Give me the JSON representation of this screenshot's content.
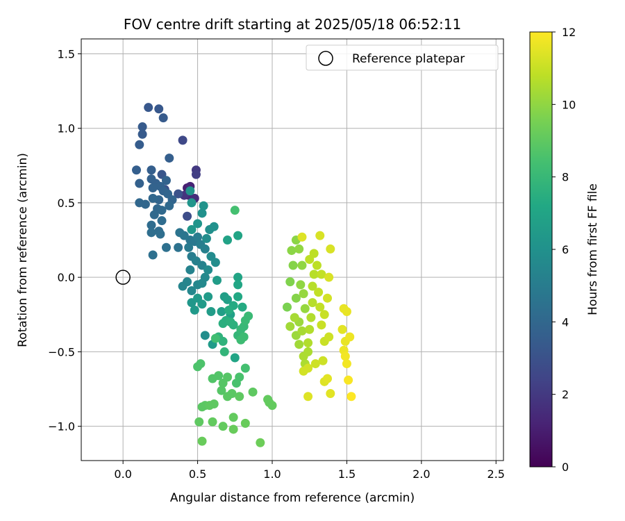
{
  "chart_data": {
    "type": "scatter",
    "title": "FOV centre drift starting at 2025/05/18 06:52:11",
    "xlabel": "Angular distance from reference (arcmin)",
    "ylabel": "Rotation from reference (arcmin)",
    "xlim": [
      -0.28,
      2.55
    ],
    "ylim": [
      -1.23,
      1.6
    ],
    "xticks": [
      0.0,
      0.5,
      1.0,
      1.5,
      2.0,
      2.5
    ],
    "xtick_labels": [
      "0.0",
      "0.5",
      "1.0",
      "1.5",
      "2.0",
      "2.5"
    ],
    "yticks": [
      -1.0,
      -0.5,
      0.0,
      0.5,
      1.0,
      1.5
    ],
    "ytick_labels": [
      "−1.0",
      "−0.5",
      "0.0",
      "0.5",
      "1.0",
      "1.5"
    ],
    "grid": true,
    "legend": {
      "placement": "top-right",
      "entries": [
        "Reference platepar"
      ]
    },
    "reference_point": {
      "x": 0.0,
      "y": 0.0,
      "label": "Reference platepar"
    },
    "colorbar": {
      "label": "Hours from first FF file",
      "colormap": "viridis",
      "range": [
        0,
        12
      ],
      "ticks": [
        "0",
        "2",
        "4",
        "6",
        "8",
        "10",
        "12"
      ]
    },
    "series": [
      {
        "x": 0.43,
        "y": 0.6,
        "c": 1.0
      },
      {
        "x": 0.45,
        "y": 0.61,
        "c": 1.2
      },
      {
        "x": 0.44,
        "y": 0.55,
        "c": 1.3
      },
      {
        "x": 0.48,
        "y": 0.53,
        "c": 1.5
      },
      {
        "x": 0.41,
        "y": 0.55,
        "c": 1.8
      },
      {
        "x": 0.49,
        "y": 0.72,
        "c": 2.0
      },
      {
        "x": 0.49,
        "y": 0.69,
        "c": 2.2
      },
      {
        "x": 0.4,
        "y": 0.92,
        "c": 2.6
      },
      {
        "x": 0.43,
        "y": 0.41,
        "c": 2.8
      },
      {
        "x": 0.37,
        "y": 0.56,
        "c": 3.0
      },
      {
        "x": 0.28,
        "y": 0.59,
        "c": 3.0
      },
      {
        "x": 0.26,
        "y": 0.69,
        "c": 3.2
      },
      {
        "x": 0.17,
        "y": 1.14,
        "c": 3.3
      },
      {
        "x": 0.24,
        "y": 1.13,
        "c": 3.3
      },
      {
        "x": 0.27,
        "y": 1.07,
        "c": 3.4
      },
      {
        "x": 0.13,
        "y": 1.01,
        "c": 3.4
      },
      {
        "x": 0.13,
        "y": 0.96,
        "c": 3.4
      },
      {
        "x": 0.11,
        "y": 0.89,
        "c": 3.5
      },
      {
        "x": 0.31,
        "y": 0.8,
        "c": 3.6
      },
      {
        "x": 0.09,
        "y": 0.72,
        "c": 3.6
      },
      {
        "x": 0.19,
        "y": 0.72,
        "c": 3.6
      },
      {
        "x": 0.11,
        "y": 0.63,
        "c": 3.7
      },
      {
        "x": 0.19,
        "y": 0.66,
        "c": 3.7
      },
      {
        "x": 0.22,
        "y": 0.63,
        "c": 3.7
      },
      {
        "x": 0.25,
        "y": 0.61,
        "c": 3.8
      },
      {
        "x": 0.27,
        "y": 0.58,
        "c": 3.8
      },
      {
        "x": 0.2,
        "y": 0.6,
        "c": 3.8
      },
      {
        "x": 0.29,
        "y": 0.65,
        "c": 3.8
      },
      {
        "x": 0.3,
        "y": 0.56,
        "c": 3.9
      },
      {
        "x": 0.33,
        "y": 0.52,
        "c": 3.9
      },
      {
        "x": 0.24,
        "y": 0.52,
        "c": 3.9
      },
      {
        "x": 0.2,
        "y": 0.53,
        "c": 4.0
      },
      {
        "x": 0.11,
        "y": 0.5,
        "c": 4.0
      },
      {
        "x": 0.15,
        "y": 0.49,
        "c": 4.0
      },
      {
        "x": 0.23,
        "y": 0.46,
        "c": 4.0
      },
      {
        "x": 0.26,
        "y": 0.45,
        "c": 4.1
      },
      {
        "x": 0.31,
        "y": 0.48,
        "c": 4.1
      },
      {
        "x": 0.21,
        "y": 0.42,
        "c": 4.1
      },
      {
        "x": 0.26,
        "y": 0.38,
        "c": 4.2
      },
      {
        "x": 0.19,
        "y": 0.35,
        "c": 4.2
      },
      {
        "x": 0.24,
        "y": 0.31,
        "c": 4.2
      },
      {
        "x": 0.19,
        "y": 0.3,
        "c": 4.3
      },
      {
        "x": 0.25,
        "y": 0.29,
        "c": 4.3
      },
      {
        "x": 0.29,
        "y": 0.2,
        "c": 4.4
      },
      {
        "x": 0.2,
        "y": 0.15,
        "c": 4.4
      },
      {
        "x": 0.37,
        "y": 0.2,
        "c": 4.5
      },
      {
        "x": 0.38,
        "y": 0.3,
        "c": 4.6
      },
      {
        "x": 0.41,
        "y": 0.28,
        "c": 4.7
      },
      {
        "x": 0.45,
        "y": 0.25,
        "c": 4.7
      },
      {
        "x": 0.48,
        "y": 0.24,
        "c": 4.8
      },
      {
        "x": 0.44,
        "y": 0.2,
        "c": 4.9
      },
      {
        "x": 0.46,
        "y": 0.14,
        "c": 5.0
      },
      {
        "x": 0.5,
        "y": 0.27,
        "c": 5.0
      },
      {
        "x": 0.52,
        "y": 0.22,
        "c": 5.1
      },
      {
        "x": 0.55,
        "y": 0.19,
        "c": 5.2
      },
      {
        "x": 0.49,
        "y": 0.11,
        "c": 5.2
      },
      {
        "x": 0.53,
        "y": 0.08,
        "c": 5.3
      },
      {
        "x": 0.45,
        "y": 0.05,
        "c": 5.3
      },
      {
        "x": 0.43,
        "y": -0.03,
        "c": 5.4
      },
      {
        "x": 0.4,
        "y": -0.06,
        "c": 5.4
      },
      {
        "x": 0.46,
        "y": -0.09,
        "c": 5.5
      },
      {
        "x": 0.5,
        "y": -0.05,
        "c": 5.5
      },
      {
        "x": 0.53,
        "y": -0.04,
        "c": 5.6
      },
      {
        "x": 0.55,
        "y": 0.0,
        "c": 5.6
      },
      {
        "x": 0.57,
        "y": 0.05,
        "c": 5.7
      },
      {
        "x": 0.59,
        "y": 0.14,
        "c": 5.7
      },
      {
        "x": 0.62,
        "y": 0.1,
        "c": 5.8
      },
      {
        "x": 0.56,
        "y": 0.26,
        "c": 5.8
      },
      {
        "x": 0.58,
        "y": 0.32,
        "c": 5.9
      },
      {
        "x": 0.61,
        "y": 0.34,
        "c": 6.0
      },
      {
        "x": 0.53,
        "y": 0.43,
        "c": 6.0
      },
      {
        "x": 0.54,
        "y": 0.48,
        "c": 6.1
      },
      {
        "x": 0.45,
        "y": 0.58,
        "c": 6.1
      },
      {
        "x": 0.46,
        "y": 0.5,
        "c": 6.2
      },
      {
        "x": 0.5,
        "y": 0.36,
        "c": 6.2
      },
      {
        "x": 0.46,
        "y": 0.32,
        "c": 6.3
      },
      {
        "x": 0.46,
        "y": -0.17,
        "c": 6.3
      },
      {
        "x": 0.48,
        "y": -0.22,
        "c": 6.4
      },
      {
        "x": 0.5,
        "y": -0.14,
        "c": 6.4
      },
      {
        "x": 0.53,
        "y": -0.18,
        "c": 6.5
      },
      {
        "x": 0.57,
        "y": -0.13,
        "c": 6.5
      },
      {
        "x": 0.59,
        "y": -0.23,
        "c": 6.6
      },
      {
        "x": 0.63,
        "y": -0.02,
        "c": 6.6
      },
      {
        "x": 0.66,
        "y": -0.23,
        "c": 6.7
      },
      {
        "x": 0.68,
        "y": -0.13,
        "c": 6.7
      },
      {
        "x": 0.7,
        "y": -0.15,
        "c": 6.8
      },
      {
        "x": 0.72,
        "y": -0.25,
        "c": 6.8
      },
      {
        "x": 0.7,
        "y": 0.25,
        "c": 6.9
      },
      {
        "x": 0.77,
        "y": 0.28,
        "c": 7.0
      },
      {
        "x": 0.77,
        "y": 0.0,
        "c": 7.0
      },
      {
        "x": 0.77,
        "y": -0.05,
        "c": 7.1
      },
      {
        "x": 0.77,
        "y": -0.13,
        "c": 7.2
      },
      {
        "x": 0.8,
        "y": -0.2,
        "c": 7.3
      },
      {
        "x": 0.74,
        "y": -0.19,
        "c": 7.3
      },
      {
        "x": 0.71,
        "y": -0.22,
        "c": 7.4
      },
      {
        "x": 0.67,
        "y": -0.31,
        "c": 7.5
      },
      {
        "x": 0.69,
        "y": -0.29,
        "c": 7.5
      },
      {
        "x": 0.72,
        "y": -0.3,
        "c": 7.6
      },
      {
        "x": 0.74,
        "y": -0.32,
        "c": 7.6
      },
      {
        "x": 0.64,
        "y": -0.4,
        "c": 7.7
      },
      {
        "x": 0.67,
        "y": -0.43,
        "c": 7.7
      },
      {
        "x": 0.68,
        "y": -0.5,
        "c": 7.8
      },
      {
        "x": 0.55,
        "y": -0.39,
        "c": 5.8
      },
      {
        "x": 0.6,
        "y": -0.45,
        "c": 6.5
      },
      {
        "x": 0.75,
        "y": -0.54,
        "c": 7.0
      },
      {
        "x": 0.77,
        "y": -0.39,
        "c": 7.9
      },
      {
        "x": 0.79,
        "y": -0.35,
        "c": 8.0
      },
      {
        "x": 0.81,
        "y": -0.33,
        "c": 8.0
      },
      {
        "x": 0.82,
        "y": -0.29,
        "c": 8.1
      },
      {
        "x": 0.84,
        "y": -0.26,
        "c": 8.1
      },
      {
        "x": 0.79,
        "y": -0.42,
        "c": 8.2
      },
      {
        "x": 0.81,
        "y": -0.4,
        "c": 8.2
      },
      {
        "x": 0.62,
        "y": -0.41,
        "c": 8.3
      },
      {
        "x": 0.75,
        "y": 0.45,
        "c": 8.4
      },
      {
        "x": 0.82,
        "y": -0.61,
        "c": 8.4
      },
      {
        "x": 0.78,
        "y": -0.67,
        "c": 8.5
      },
      {
        "x": 0.76,
        "y": -0.71,
        "c": 8.5
      },
      {
        "x": 0.52,
        "y": -0.58,
        "c": 8.6
      },
      {
        "x": 0.5,
        "y": -0.6,
        "c": 8.6
      },
      {
        "x": 0.6,
        "y": -0.68,
        "c": 8.7
      },
      {
        "x": 0.64,
        "y": -0.66,
        "c": 8.7
      },
      {
        "x": 0.67,
        "y": -0.71,
        "c": 8.8
      },
      {
        "x": 0.7,
        "y": -0.67,
        "c": 8.8
      },
      {
        "x": 0.66,
        "y": -0.76,
        "c": 8.8
      },
      {
        "x": 0.7,
        "y": -0.8,
        "c": 8.9
      },
      {
        "x": 0.73,
        "y": -0.78,
        "c": 8.9
      },
      {
        "x": 0.78,
        "y": -0.8,
        "c": 9.0
      },
      {
        "x": 0.87,
        "y": -0.77,
        "c": 9.0
      },
      {
        "x": 0.97,
        "y": -0.82,
        "c": 9.1
      },
      {
        "x": 0.98,
        "y": -0.84,
        "c": 9.1
      },
      {
        "x": 1.0,
        "y": -0.86,
        "c": 9.1
      },
      {
        "x": 0.53,
        "y": -0.87,
        "c": 8.9
      },
      {
        "x": 0.55,
        "y": -0.86,
        "c": 8.9
      },
      {
        "x": 0.58,
        "y": -0.86,
        "c": 9.0
      },
      {
        "x": 0.61,
        "y": -0.85,
        "c": 9.0
      },
      {
        "x": 0.51,
        "y": -0.97,
        "c": 9.0
      },
      {
        "x": 0.6,
        "y": -0.97,
        "c": 9.1
      },
      {
        "x": 0.67,
        "y": -1.0,
        "c": 9.1
      },
      {
        "x": 0.74,
        "y": -0.94,
        "c": 9.1
      },
      {
        "x": 0.74,
        "y": -1.02,
        "c": 9.2
      },
      {
        "x": 0.82,
        "y": -0.98,
        "c": 9.2
      },
      {
        "x": 0.53,
        "y": -1.1,
        "c": 9.2
      },
      {
        "x": 0.92,
        "y": -1.11,
        "c": 9.3
      },
      {
        "x": 1.1,
        "y": -0.2,
        "c": 9.6
      },
      {
        "x": 1.12,
        "y": -0.03,
        "c": 9.7
      },
      {
        "x": 1.14,
        "y": 0.08,
        "c": 9.8
      },
      {
        "x": 1.16,
        "y": -0.14,
        "c": 9.8
      },
      {
        "x": 1.13,
        "y": 0.18,
        "c": 9.9
      },
      {
        "x": 1.16,
        "y": 0.25,
        "c": 9.9
      },
      {
        "x": 1.18,
        "y": 0.19,
        "c": 10.0
      },
      {
        "x": 1.2,
        "y": 0.08,
        "c": 10.0
      },
      {
        "x": 1.19,
        "y": -0.05,
        "c": 10.0
      },
      {
        "x": 1.21,
        "y": -0.11,
        "c": 10.1
      },
      {
        "x": 1.22,
        "y": -0.21,
        "c": 10.1
      },
      {
        "x": 1.18,
        "y": -0.3,
        "c": 10.2
      },
      {
        "x": 1.16,
        "y": -0.39,
        "c": 10.2
      },
      {
        "x": 1.18,
        "y": -0.45,
        "c": 10.3
      },
      {
        "x": 1.12,
        "y": -0.33,
        "c": 10.3
      },
      {
        "x": 1.15,
        "y": -0.27,
        "c": 10.4
      },
      {
        "x": 1.2,
        "y": -0.36,
        "c": 10.4
      },
      {
        "x": 1.21,
        "y": -0.53,
        "c": 10.5
      },
      {
        "x": 1.22,
        "y": -0.58,
        "c": 10.5
      },
      {
        "x": 1.24,
        "y": -0.5,
        "c": 10.5
      },
      {
        "x": 1.24,
        "y": -0.44,
        "c": 10.6
      },
      {
        "x": 1.25,
        "y": -0.35,
        "c": 10.6
      },
      {
        "x": 1.26,
        "y": -0.27,
        "c": 10.6
      },
      {
        "x": 1.27,
        "y": -0.17,
        "c": 10.7
      },
      {
        "x": 1.27,
        "y": -0.06,
        "c": 10.7
      },
      {
        "x": 1.28,
        "y": 0.02,
        "c": 10.7
      },
      {
        "x": 1.25,
        "y": 0.12,
        "c": 10.8
      },
      {
        "x": 1.28,
        "y": 0.16,
        "c": 10.8
      },
      {
        "x": 1.3,
        "y": 0.08,
        "c": 10.8
      },
      {
        "x": 1.33,
        "y": 0.02,
        "c": 10.9
      },
      {
        "x": 1.31,
        "y": -0.1,
        "c": 10.9
      },
      {
        "x": 1.32,
        "y": -0.2,
        "c": 10.9
      },
      {
        "x": 1.35,
        "y": -0.25,
        "c": 11.0
      },
      {
        "x": 1.33,
        "y": -0.32,
        "c": 11.0
      },
      {
        "x": 1.35,
        "y": -0.43,
        "c": 11.0
      },
      {
        "x": 1.38,
        "y": -0.4,
        "c": 11.1
      },
      {
        "x": 1.34,
        "y": -0.56,
        "c": 11.1
      },
      {
        "x": 1.29,
        "y": -0.58,
        "c": 11.1
      },
      {
        "x": 1.24,
        "y": -0.61,
        "c": 11.2
      },
      {
        "x": 1.21,
        "y": -0.63,
        "c": 11.2
      },
      {
        "x": 1.37,
        "y": -0.14,
        "c": 11.2
      },
      {
        "x": 1.38,
        "y": 0.0,
        "c": 11.3
      },
      {
        "x": 1.32,
        "y": 0.28,
        "c": 11.3
      },
      {
        "x": 1.39,
        "y": 0.19,
        "c": 11.3
      },
      {
        "x": 1.2,
        "y": 0.27,
        "c": 11.4
      },
      {
        "x": 1.24,
        "y": -0.8,
        "c": 11.4
      },
      {
        "x": 1.35,
        "y": -0.7,
        "c": 11.4
      },
      {
        "x": 1.37,
        "y": -0.68,
        "c": 11.5
      },
      {
        "x": 1.39,
        "y": -0.78,
        "c": 11.5
      },
      {
        "x": 1.47,
        "y": -0.35,
        "c": 11.5
      },
      {
        "x": 1.48,
        "y": -0.21,
        "c": 11.6
      },
      {
        "x": 1.5,
        "y": -0.23,
        "c": 11.6
      },
      {
        "x": 1.49,
        "y": -0.43,
        "c": 11.6
      },
      {
        "x": 1.52,
        "y": -0.4,
        "c": 11.7
      },
      {
        "x": 1.48,
        "y": -0.49,
        "c": 11.7
      },
      {
        "x": 1.49,
        "y": -0.53,
        "c": 11.8
      },
      {
        "x": 1.5,
        "y": -0.58,
        "c": 11.8
      },
      {
        "x": 1.51,
        "y": -0.69,
        "c": 11.9
      },
      {
        "x": 1.53,
        "y": -0.8,
        "c": 12.0
      }
    ]
  }
}
